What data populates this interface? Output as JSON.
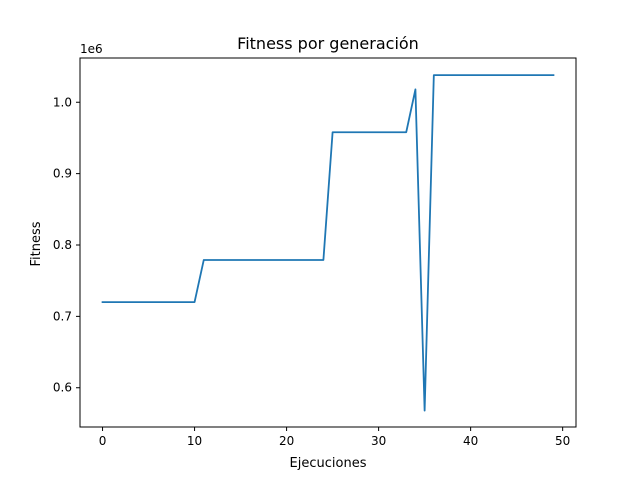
{
  "chart_data": {
    "type": "line",
    "title": "Fitness por generación",
    "xlabel": "Ejecuciones",
    "ylabel": "Fitness",
    "y_offset_text": "1e6",
    "xlim": [
      -2.45,
      51.45
    ],
    "ylim": [
      545000,
      1062000
    ],
    "xticks": [
      0,
      10,
      20,
      30,
      40,
      50
    ],
    "yticks": [
      600000,
      700000,
      800000,
      900000,
      1000000
    ],
    "ytick_labels": [
      "0.6",
      "0.7",
      "0.8",
      "0.9",
      "1.0"
    ],
    "grid": false,
    "colors": {
      "line": "#1f77b4"
    },
    "series": [
      {
        "x": [
          0,
          1,
          2,
          3,
          4,
          5,
          6,
          7,
          8,
          9,
          10,
          11,
          12,
          13,
          14,
          15,
          16,
          17,
          18,
          19,
          20,
          21,
          22,
          23,
          24,
          25,
          26,
          27,
          28,
          29,
          30,
          31,
          32,
          33,
          34,
          35,
          36,
          37,
          38,
          39,
          40,
          41,
          42,
          43,
          44,
          45,
          46,
          47,
          48,
          49
        ],
        "values": [
          720000,
          720000,
          720000,
          720000,
          720000,
          720000,
          720000,
          720000,
          720000,
          720000,
          720000,
          779000,
          779000,
          779000,
          779000,
          779000,
          779000,
          779000,
          779000,
          779000,
          779000,
          779000,
          779000,
          779000,
          779000,
          958000,
          958000,
          958000,
          958000,
          958000,
          958000,
          958000,
          958000,
          958000,
          1018000,
          568000,
          1038000,
          1038000,
          1038000,
          1038000,
          1038000,
          1038000,
          1038000,
          1038000,
          1038000,
          1038000,
          1038000,
          1038000,
          1038000,
          1038000
        ]
      }
    ]
  }
}
